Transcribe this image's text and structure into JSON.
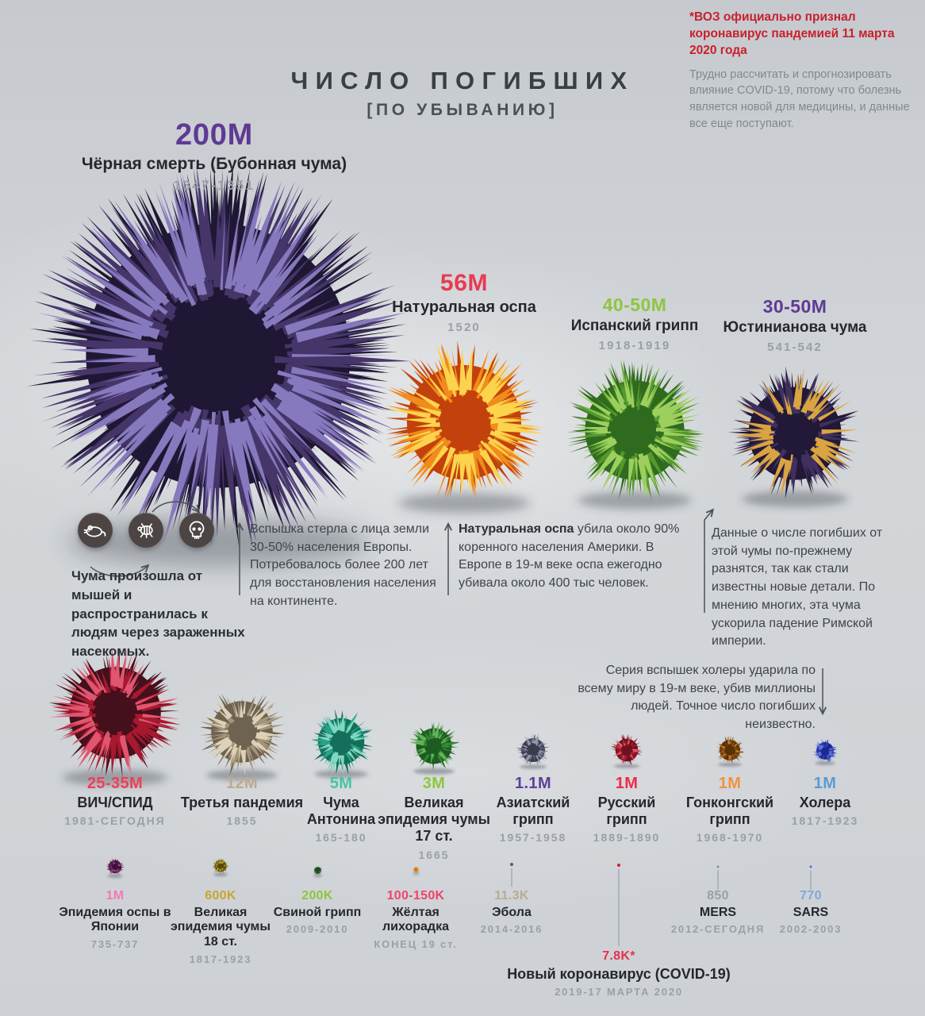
{
  "title": {
    "line1": "ЧИСЛО ПОГИБШИХ",
    "line2": "[ПО УБЫВАНИЮ]"
  },
  "who_note": {
    "highlight": "*ВОЗ официально признал коронавирус пандемией 11 марта 2020 года",
    "body": "Трудно рассчитать и спрогнозировать влияние COVID-19, потому что болезнь является новой для медицины, и данные все еще поступают."
  },
  "annotations": {
    "plague_origin": "Чума произошла от мышей и распространилась к людям через зараженных насекомых.",
    "black_death": "Вспышка стерла с лица земли 30-50% населения Европы. Потребовалось более 200 лет для восстановления населения на континенте.",
    "smallpox_bold": "Натуральная оспа",
    "smallpox_rest": " убила около 90% коренного населения Америки. В Европе в 19-м веке оспа ежегодно убивала около 400 тыс человек.",
    "justinian": "Данные о числе погибших от этой чумы по-прежнему разнятся, так как стали известны новые детали. По мнению многих, эта чума ускорила падение Римской империи.",
    "cholera": "Серия вспышек холеры ударила по всему миру в 19-м веке, убив миллионы людей. Точное число погибших неизвестно."
  },
  "icons": {
    "transmission_chain": [
      "rat-icon",
      "flea-icon",
      "skull-icon"
    ]
  },
  "colors": {
    "accent_red": "#c9202c",
    "text_dark": "#24282c",
    "text_gray": "#9aa0a6"
  },
  "chart_data": {
    "type": "bubble",
    "title": "ЧИСЛО ПОГИБШИХ",
    "subtitle": "[ПО УБЫВАНИЮ]",
    "legend_position": "none",
    "entries": [
      {
        "name": "Чёрная смерть (Бубонная чума)",
        "value": "200M",
        "years": "1347-1351",
        "value_color": "#5e3a94",
        "diameter": 490,
        "colors": {
          "dark": "#1f1733",
          "mid": "#453569",
          "light": "#8679bd"
        }
      },
      {
        "name": "Натуральная оспа",
        "value": "56M",
        "years": "1520",
        "value_color": "#e83a52",
        "diameter": 212,
        "colors": {
          "dark": "#c2410c",
          "mid": "#f08c1c",
          "light": "#fcd34d"
        }
      },
      {
        "name": "Испанский грипп",
        "value": "40-50M",
        "years": "1918-1919",
        "value_color": "#8dc63f",
        "diameter": 184,
        "colors": {
          "dark": "#2f6b1f",
          "mid": "#55992c",
          "light": "#9ccf5e"
        }
      },
      {
        "name": "Юстинианова чума",
        "value": "30-50M",
        "years": "541-542",
        "value_color": "#5e3a94",
        "diameter": 172,
        "colors": {
          "dark": "#221837",
          "mid": "#3f3060",
          "light": "#d9a441"
        }
      },
      {
        "name": "ВИЧ/СПИД",
        "value": "25-35M",
        "years": "1981-СЕГОДНЯ",
        "value_color": "#f03e58",
        "diameter": 170,
        "colors": {
          "dark": "#44101c",
          "mid": "#a8182f",
          "light": "#e05670"
        }
      },
      {
        "name": "Третья пандемия",
        "value": "12M",
        "years": "1855",
        "value_color": "#b9ab90",
        "diameter": 114,
        "colors": {
          "dark": "#6e6350",
          "mid": "#a3947a",
          "light": "#ddd2b8"
        }
      },
      {
        "name": "Чума Антонина",
        "value": "5M",
        "years": "165-180",
        "value_color": "#45c4a5",
        "diameter": 86,
        "colors": {
          "dark": "#156e59",
          "mid": "#2aa188",
          "light": "#7fd9c0"
        }
      },
      {
        "name": "Великая эпидемия чумы 17 ст.",
        "value": "3M",
        "years": "1665",
        "value_color": "#8dc63f",
        "diameter": 66,
        "colors": {
          "dark": "#1d5c20",
          "mid": "#338a37",
          "light": "#66b45a"
        }
      },
      {
        "name": "Азиатский грипп",
        "value": "1.1M",
        "years": "1957-1958",
        "value_color": "#5d3f99",
        "diameter": 44,
        "colors": {
          "dark": "#3a3c4e",
          "mid": "#5f6278",
          "light": "#9599ad"
        }
      },
      {
        "name": "Русский грипп",
        "value": "1M",
        "years": "1889-1890",
        "value_color": "#ef2b49",
        "diameter": 42,
        "colors": {
          "dark": "#6e1220",
          "mid": "#b01f31",
          "light": "#dd5a68"
        }
      },
      {
        "name": "Гонконгский грипп",
        "value": "1M",
        "years": "1968-1970",
        "value_color": "#f0923f",
        "diameter": 38,
        "colors": {
          "dark": "#58300a",
          "mid": "#8f5212",
          "light": "#c78328"
        }
      },
      {
        "name": "Холера",
        "value": "1M",
        "years": "1817-1923",
        "value_color": "#5b9bd5",
        "diameter": 32,
        "colors": {
          "dark": "#1a2a8f",
          "mid": "#2f3fbf",
          "light": "#6673e0"
        }
      },
      {
        "name": "Эпидемия оспы в Японии",
        "value": "1M",
        "years": "735-737",
        "value_color": "#f278b6",
        "diameter": 24,
        "colors": {
          "dark": "#3d1038",
          "mid": "#652a5e",
          "light": "#9a4d8e"
        }
      },
      {
        "name": "Великая эпидемия чумы 18 ст.",
        "value": "600K",
        "years": "1817-1923",
        "value_color": "#c7a62e",
        "diameter": 22,
        "colors": {
          "dark": "#57490d",
          "mid": "#857014",
          "light": "#bfa930"
        }
      },
      {
        "name": "Свиной грипп",
        "value": "200K",
        "years": "2009-2010",
        "value_color": "#8dc63f",
        "diameter": 13,
        "colors": {
          "dark": "#1d4a1d",
          "mid": "#2e6b2e",
          "light": "#4a8f3f"
        }
      },
      {
        "name": "Жёлтая лихорадка",
        "value": "100-150K",
        "years": "КОНЕЦ 19 ст.",
        "value_color": "#f04468",
        "diameter": 9,
        "colors": {
          "dark": "#d97706",
          "mid": "#f59e0b",
          "light": "#fbbf24"
        }
      },
      {
        "name": "Эбола",
        "value": "11.3K",
        "years": "2014-2016",
        "value_color": "#b9ab90",
        "diameter": 4,
        "colors": {
          "dark": "#6e4a40",
          "mid": "#7a5248",
          "light": "#8a625a"
        }
      },
      {
        "name": "Новый коронавирус (COVID-19)",
        "value": "7.8K*",
        "years": "2019-17 МАРТА 2020",
        "value_color": "#e8304a",
        "diameter": 4,
        "colors": {
          "dark": "#b01c28",
          "mid": "#d1202f",
          "light": "#e04a56"
        }
      },
      {
        "name": "MERS",
        "value": "850",
        "years": "2012-СЕГОДНЯ",
        "value_color": "#9aa0a6",
        "diameter": 3,
        "colors": {
          "dark": "#777d84",
          "mid": "#8a9097",
          "light": "#9aa0a6"
        }
      },
      {
        "name": "SARS",
        "value": "770",
        "years": "2002-2003",
        "value_color": "#7fa8d9",
        "diameter": 3,
        "colors": {
          "dark": "#3a55b0",
          "mid": "#4a6fd9",
          "light": "#6f8fe0"
        }
      }
    ]
  }
}
